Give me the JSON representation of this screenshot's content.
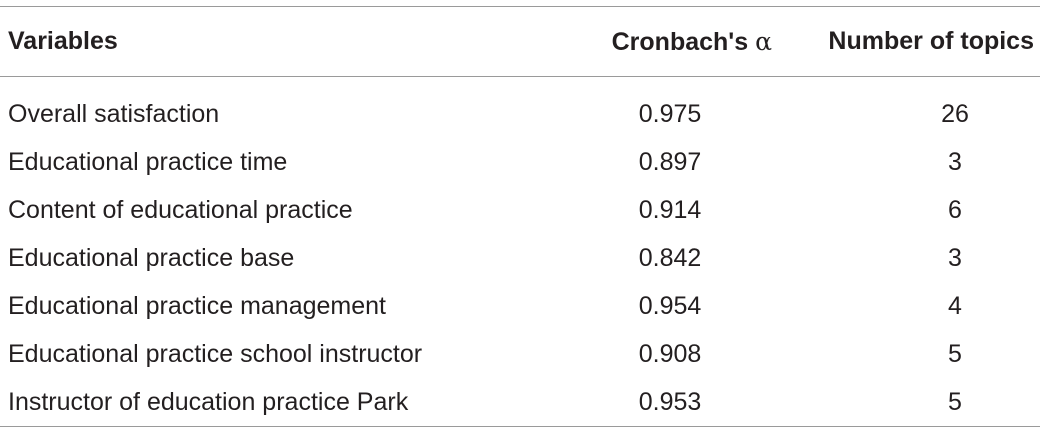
{
  "table": {
    "headers": {
      "variables": "Variables",
      "alpha_prefix": "Cronbach's ",
      "alpha_symbol": "α",
      "topics": "Number of topics"
    },
    "rows": [
      {
        "variable": "Overall satisfaction",
        "alpha": "0.975",
        "topics": "26"
      },
      {
        "variable": "Educational practice time",
        "alpha": "0.897",
        "topics": "3"
      },
      {
        "variable": "Content of educational practice",
        "alpha": "0.914",
        "topics": "6"
      },
      {
        "variable": "Educational practice base",
        "alpha": "0.842",
        "topics": "3"
      },
      {
        "variable": "Educational practice management",
        "alpha": "0.954",
        "topics": "4"
      },
      {
        "variable": "Educational practice school instructor",
        "alpha": "0.908",
        "topics": "5"
      },
      {
        "variable": "Instructor of education practice Park",
        "alpha": "0.953",
        "topics": "5"
      }
    ]
  }
}
